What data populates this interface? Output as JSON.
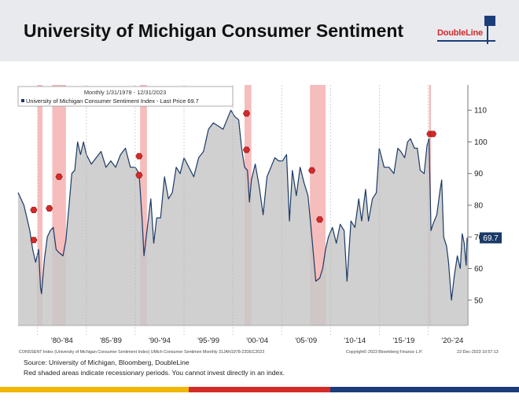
{
  "page": {
    "title": "University of Michigan Consumer Sentiment",
    "logo": "DoubleLine",
    "source": "Source: University of Michigan, Bloomberg, DoubleLine",
    "note": "Red shaded areas indicate recessionary periods. You cannot invest directly in an index.",
    "colors": {
      "brand_red": "#d42a2a",
      "brand_navy": "#1c3d7a",
      "brand_yellow": "#f2b705",
      "line": "#1b3a66",
      "fill": "#c8c8c8",
      "recession": "#f3a7a7"
    }
  },
  "chart_data": {
    "type": "area",
    "legend": {
      "period": "Monthly 1/31/1978 - 12/31/2023",
      "series_label": "University of Michigan Consumer Sentiment Index - Last Price 69.7",
      "placement": "top-left"
    },
    "last_value_label": "69.7",
    "ylim": [
      42,
      118
    ],
    "y_ticks": [
      "50",
      "60",
      "70",
      "80",
      "90",
      "100",
      "110"
    ],
    "x_tick_labels": [
      "'80-'84",
      "'85-'89",
      "'90-'94",
      "'95-'99",
      "'00-'04",
      "'05-'09",
      "'10-'14",
      "'15-'19",
      "'20-'24"
    ],
    "footer_texts": [
      "CONSSENT Index (University of Michigan Consumer Sentiment Index) UMich Consumer Sentimen Monthly 31JAN1978-22DEC2023",
      "Copyright© 2023 Bloomberg Finance L.P.",
      "22-Dec-2023 10:57:13"
    ],
    "recessions": [
      [
        1980.0,
        1980.5
      ],
      [
        1981.5,
        1982.9
      ],
      [
        1990.5,
        1991.2
      ],
      [
        2001.2,
        2001.9
      ],
      [
        2007.9,
        2009.5
      ],
      [
        2020.1,
        2020.3
      ]
    ],
    "series": [
      {
        "name": "University of Michigan Consumer Sentiment Index",
        "points": [
          [
            1978.0,
            84
          ],
          [
            1978.3,
            82
          ],
          [
            1978.6,
            80
          ],
          [
            1978.9,
            76
          ],
          [
            1979.2,
            72
          ],
          [
            1979.5,
            66
          ],
          [
            1979.8,
            62
          ],
          [
            1980.1,
            66
          ],
          [
            1980.3,
            54
          ],
          [
            1980.4,
            52
          ],
          [
            1980.7,
            63
          ],
          [
            1981.0,
            70
          ],
          [
            1981.3,
            72
          ],
          [
            1981.6,
            73
          ],
          [
            1981.9,
            66
          ],
          [
            1982.2,
            65
          ],
          [
            1982.6,
            64
          ],
          [
            1982.9,
            69
          ],
          [
            1983.2,
            79
          ],
          [
            1983.5,
            90
          ],
          [
            1983.8,
            91
          ],
          [
            1984.1,
            100
          ],
          [
            1984.4,
            96
          ],
          [
            1984.7,
            100
          ],
          [
            1985.0,
            96
          ],
          [
            1985.5,
            93
          ],
          [
            1986.0,
            95
          ],
          [
            1986.5,
            97
          ],
          [
            1987.0,
            92
          ],
          [
            1987.5,
            94
          ],
          [
            1988.0,
            92
          ],
          [
            1988.5,
            96
          ],
          [
            1989.0,
            98
          ],
          [
            1989.5,
            92
          ],
          [
            1990.0,
            92
          ],
          [
            1990.4,
            90
          ],
          [
            1990.7,
            76
          ],
          [
            1990.9,
            64
          ],
          [
            1991.2,
            72
          ],
          [
            1991.6,
            82
          ],
          [
            1991.9,
            68
          ],
          [
            1992.2,
            76
          ],
          [
            1992.6,
            76
          ],
          [
            1993.0,
            89
          ],
          [
            1993.4,
            82
          ],
          [
            1993.8,
            84
          ],
          [
            1994.2,
            92
          ],
          [
            1994.6,
            90
          ],
          [
            1995.0,
            95
          ],
          [
            1995.5,
            92
          ],
          [
            1996.0,
            89
          ],
          [
            1996.5,
            95
          ],
          [
            1997.0,
            97
          ],
          [
            1997.5,
            104
          ],
          [
            1998.0,
            106
          ],
          [
            1998.5,
            105
          ],
          [
            1999.0,
            104
          ],
          [
            1999.4,
            107
          ],
          [
            1999.8,
            110
          ],
          [
            2000.2,
            108
          ],
          [
            2000.6,
            107
          ],
          [
            2000.9,
            98
          ],
          [
            2001.2,
            92
          ],
          [
            2001.5,
            91
          ],
          [
            2001.7,
            81
          ],
          [
            2001.9,
            88
          ],
          [
            2002.3,
            93
          ],
          [
            2002.7,
            86
          ],
          [
            2003.1,
            77
          ],
          [
            2003.5,
            89
          ],
          [
            2003.9,
            92
          ],
          [
            2004.3,
            95
          ],
          [
            2004.7,
            94
          ],
          [
            2005.1,
            94
          ],
          [
            2005.5,
            96
          ],
          [
            2005.8,
            75
          ],
          [
            2006.1,
            91
          ],
          [
            2006.5,
            83
          ],
          [
            2006.9,
            92
          ],
          [
            2007.3,
            87
          ],
          [
            2007.7,
            83
          ],
          [
            2008.1,
            70
          ],
          [
            2008.5,
            56
          ],
          [
            2008.9,
            57
          ],
          [
            2009.2,
            60
          ],
          [
            2009.5,
            66
          ],
          [
            2009.8,
            70
          ],
          [
            2010.2,
            73
          ],
          [
            2010.6,
            68
          ],
          [
            2011.0,
            74
          ],
          [
            2011.4,
            72
          ],
          [
            2011.7,
            56
          ],
          [
            2012.1,
            75
          ],
          [
            2012.5,
            73
          ],
          [
            2012.9,
            82
          ],
          [
            2013.2,
            75
          ],
          [
            2013.6,
            85
          ],
          [
            2013.9,
            75
          ],
          [
            2014.3,
            82
          ],
          [
            2014.7,
            84
          ],
          [
            2015.0,
            98
          ],
          [
            2015.5,
            92
          ],
          [
            2016.0,
            92
          ],
          [
            2016.5,
            90
          ],
          [
            2016.9,
            98
          ],
          [
            2017.2,
            97
          ],
          [
            2017.6,
            95
          ],
          [
            2017.9,
            100
          ],
          [
            2018.2,
            101
          ],
          [
            2018.6,
            98
          ],
          [
            2018.9,
            98
          ],
          [
            2019.2,
            91
          ],
          [
            2019.6,
            90
          ],
          [
            2019.9,
            99
          ],
          [
            2020.1,
            101
          ],
          [
            2020.3,
            72
          ],
          [
            2020.5,
            74
          ],
          [
            2020.9,
            77
          ],
          [
            2021.2,
            84
          ],
          [
            2021.4,
            88
          ],
          [
            2021.6,
            70
          ],
          [
            2021.9,
            67
          ],
          [
            2022.1,
            62
          ],
          [
            2022.4,
            50
          ],
          [
            2022.7,
            58
          ],
          [
            2023.0,
            64
          ],
          [
            2023.3,
            60
          ],
          [
            2023.5,
            71
          ],
          [
            2023.7,
            68
          ],
          [
            2023.9,
            61
          ],
          [
            2024.0,
            69.7
          ]
        ]
      }
    ],
    "markers": [
      [
        1979.6,
        78.5
      ],
      [
        1979.6,
        69
      ],
      [
        1981.2,
        79
      ],
      [
        1982.2,
        89
      ],
      [
        1990.4,
        95.5
      ],
      [
        1990.4,
        89.5
      ],
      [
        2001.4,
        109
      ],
      [
        2001.4,
        97.5
      ],
      [
        2008.1,
        91
      ],
      [
        2008.9,
        75.5
      ],
      [
        2020.2,
        102.5
      ],
      [
        2020.5,
        102.5
      ]
    ]
  }
}
